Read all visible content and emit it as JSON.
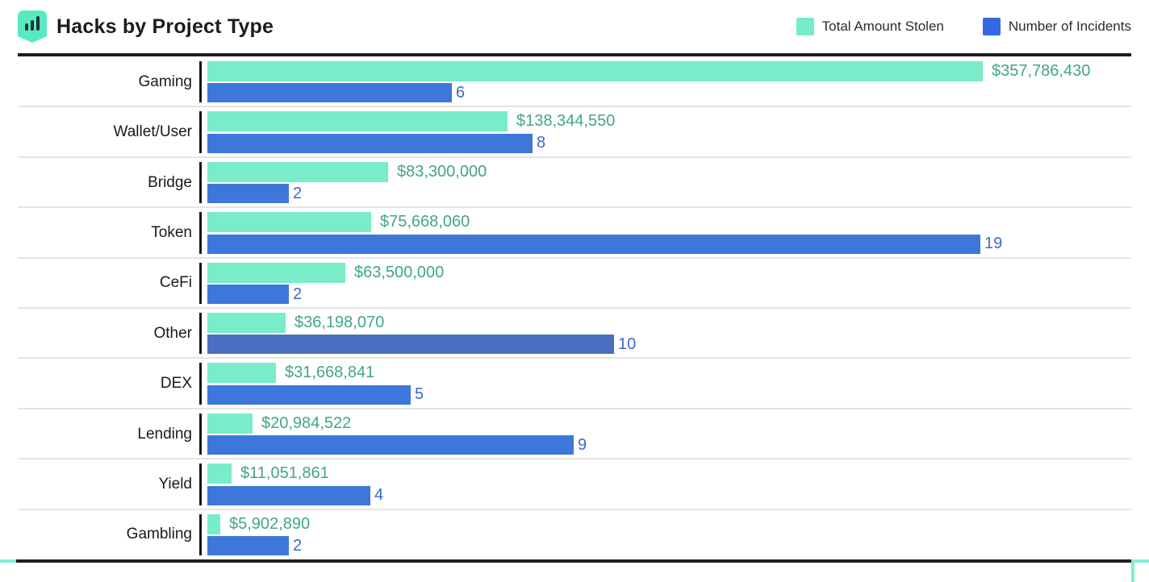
{
  "header": {
    "title": "Hacks by Project Type",
    "icon": "bar-chart-badge-icon",
    "icon_color": "#59e9c0"
  },
  "legend": {
    "amount_label": "Total Amount Stolen",
    "amount_color": "#76ecca",
    "incidents_label": "Number of Incidents",
    "incidents_color": "#3568e3"
  },
  "chart_data": {
    "type": "bar",
    "orientation": "horizontal",
    "title": "Hacks by Project Type",
    "legend_position": "top-right",
    "grid": false,
    "categories": [
      "Gaming",
      "Wallet/User",
      "Bridge",
      "Token",
      "CeFi",
      "Other",
      "DEX",
      "Lending",
      "Yield",
      "Gambling"
    ],
    "series": [
      {
        "name": "Total Amount Stolen",
        "color": "#79ecca",
        "label_color": "#41a58b",
        "values": [
          357786430,
          138344550,
          83300000,
          75668060,
          63500000,
          36198070,
          31668841,
          20984522,
          11051861,
          5902890
        ],
        "labels": [
          "$357,786,430",
          "$138,344,550",
          "$83,300,000",
          "$75,668,060",
          "$63,500,000",
          "$36,198,070",
          "$31,668,841",
          "$20,984,522",
          "$11,051,861",
          "$5,902,890"
        ]
      },
      {
        "name": "Number of Incidents",
        "color": "#3d77da",
        "label_color": "#3e68cb",
        "values": [
          6,
          8,
          2,
          19,
          2,
          10,
          5,
          9,
          4,
          2
        ],
        "labels": [
          "6",
          "8",
          "2",
          "19",
          "2",
          "10",
          "5",
          "9",
          "4",
          "2"
        ],
        "bar_colors": [
          "#3d77da",
          "#3d77da",
          "#3d77da",
          "#3d77da",
          "#3d77da",
          "#4a6fc1",
          "#3d77da",
          "#3d77da",
          "#3d77da",
          "#3d77da"
        ]
      }
    ]
  }
}
